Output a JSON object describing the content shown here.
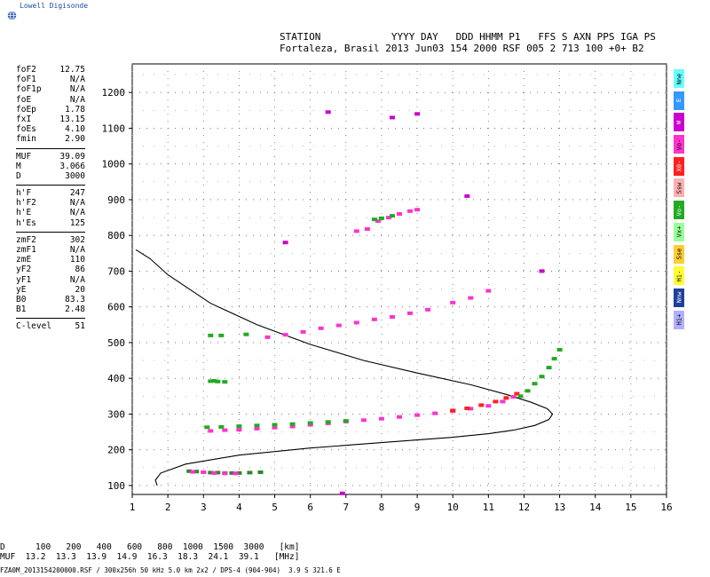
{
  "logo": {
    "text": "Lowell Digisonde",
    "icon": "globe-icon"
  },
  "header": {
    "labels": "STATION            YYYY DAY   DDD HHMM P1   FFS S AXN PPS IGA PS",
    "values": "Fortaleza, Brasil 2013 Jun03 154 2000 RSF 005 2 713 100 +0+ B2"
  },
  "params_group1": [
    {
      "name": "foF2",
      "value": "12.75"
    },
    {
      "name": "foF1",
      "value": "N/A"
    },
    {
      "name": "foF1p",
      "value": "N/A"
    },
    {
      "name": "foE",
      "value": "N/A"
    },
    {
      "name": "foEp",
      "value": "1.78"
    },
    {
      "name": "fxI",
      "value": "13.15"
    },
    {
      "name": "foEs",
      "value": "4.10"
    },
    {
      "name": "fmin",
      "value": "2.90"
    }
  ],
  "params_group2": [
    {
      "name": "MUF",
      "value": "39.09"
    },
    {
      "name": "M",
      "value": "3.066"
    },
    {
      "name": "D",
      "value": "3000"
    }
  ],
  "params_group3": [
    {
      "name": "h'F",
      "value": "247"
    },
    {
      "name": "h'F2",
      "value": "N/A"
    },
    {
      "name": "h'E",
      "value": "N/A"
    },
    {
      "name": "h'Es",
      "value": "125"
    }
  ],
  "params_group4": [
    {
      "name": "zmF2",
      "value": "302"
    },
    {
      "name": "zmF1",
      "value": "N/A"
    },
    {
      "name": "zmE",
      "value": "110"
    },
    {
      "name": "yF2",
      "value": "86"
    },
    {
      "name": "yF1",
      "value": "N/A"
    },
    {
      "name": "yE",
      "value": "20"
    },
    {
      "name": "B0",
      "value": "83.3"
    },
    {
      "name": "B1",
      "value": "2.48"
    }
  ],
  "params_group5": [
    {
      "name": "C-level",
      "value": "51"
    }
  ],
  "legend": [
    {
      "label": "Nne",
      "color": "#66ffff"
    },
    {
      "label": "E",
      "color": "#3399ff"
    },
    {
      "label": "W",
      "color": "#cc00cc"
    },
    {
      "label": "Vo-",
      "color": "#ff33cc"
    },
    {
      "label": "X0-",
      "color": "#ff2020"
    },
    {
      "label": "Ssw",
      "color": "#ffb0b0"
    },
    {
      "label": "Vo-",
      "color": "#22aa22"
    },
    {
      "label": "Vx+",
      "color": "#99ff99"
    },
    {
      "label": "Sse",
      "color": "#ffcc33"
    },
    {
      "label": "Hi-",
      "color": "#ffff33"
    },
    {
      "label": "Nnw",
      "color": "#1f3f99"
    },
    {
      "label": "Hi+",
      "color": "#b0b0ff"
    }
  ],
  "footer": {
    "line1": "D      100   200   400   600   800  1000  1500  3000   [km]",
    "line2": "MUF  13.2  13.3  13.9  14.9  16.3  18.3  24.1  39.1   [MHz]",
    "file": "FZA0M_2013154200000.RSF / 300x256h 50 kHz 5.0 km 2x2 / DPS-4 (904-904)  3.9 S 321.6 E"
  },
  "chart_data": {
    "type": "scatter",
    "xlim": [
      1,
      16
    ],
    "ylim": [
      75,
      1280
    ],
    "xticks": [
      1,
      2,
      3,
      4,
      5,
      6,
      7,
      8,
      9,
      10,
      11,
      12,
      13,
      14,
      15,
      16
    ],
    "yticks": [
      100,
      200,
      300,
      400,
      500,
      600,
      700,
      800,
      900,
      1000,
      1100,
      1200
    ],
    "grid": true,
    "profile": [
      [
        1.7,
        100
      ],
      [
        1.65,
        115
      ],
      [
        1.8,
        135
      ],
      [
        2.5,
        160
      ],
      [
        4,
        185
      ],
      [
        6,
        205
      ],
      [
        8,
        220
      ],
      [
        10,
        235
      ],
      [
        11,
        245
      ],
      [
        11.7,
        255
      ],
      [
        12.3,
        268
      ],
      [
        12.7,
        285
      ],
      [
        12.8,
        300
      ],
      [
        12.65,
        315
      ],
      [
        12.2,
        333
      ],
      [
        11.5,
        355
      ],
      [
        10.5,
        382
      ],
      [
        9,
        415
      ],
      [
        7.5,
        450
      ],
      [
        6,
        495
      ],
      [
        4.5,
        550
      ],
      [
        3.2,
        610
      ],
      [
        2,
        690
      ],
      [
        1.5,
        735
      ],
      [
        1.1,
        760
      ]
    ],
    "traces": [
      {
        "name": "E-layer",
        "color": "#2a8a2a",
        "points": [
          [
            2.6,
            140
          ],
          [
            2.8,
            139
          ],
          [
            3,
            137
          ],
          [
            3.2,
            136
          ],
          [
            3.4,
            136
          ],
          [
            3.6,
            135
          ],
          [
            3.8,
            135
          ],
          [
            4,
            135
          ],
          [
            4.3,
            136
          ],
          [
            4.6,
            137
          ]
        ]
      },
      {
        "name": "E-layer echo",
        "color": "#ff33cc",
        "points": [
          [
            2.7,
            138
          ],
          [
            3,
            137
          ],
          [
            3.3,
            135
          ],
          [
            3.6,
            134
          ],
          [
            3.9,
            134
          ]
        ]
      },
      {
        "name": "F-trace",
        "color": "#ff33cc",
        "points": [
          [
            3.2,
            253
          ],
          [
            3.6,
            255
          ],
          [
            4,
            256
          ],
          [
            4.5,
            259
          ],
          [
            5,
            262
          ],
          [
            5.5,
            265
          ],
          [
            6,
            270
          ],
          [
            6.5,
            274
          ],
          [
            7,
            279
          ],
          [
            7.5,
            283
          ],
          [
            8,
            287
          ],
          [
            8.5,
            292
          ],
          [
            9,
            297
          ],
          [
            9.5,
            302
          ],
          [
            10,
            308
          ],
          [
            10.5,
            315
          ],
          [
            11,
            323
          ],
          [
            11.4,
            335
          ],
          [
            11.7,
            348
          ]
        ]
      },
      {
        "name": "F-trace o",
        "color": "#22aa22",
        "points": [
          [
            3.1,
            263
          ],
          [
            3.5,
            264
          ],
          [
            4,
            266
          ],
          [
            4.5,
            268
          ],
          [
            5,
            270
          ],
          [
            5.5,
            272
          ],
          [
            6,
            275
          ],
          [
            6.5,
            278
          ],
          [
            7,
            281
          ]
        ]
      },
      {
        "name": "F-trace x",
        "color": "#ff2020",
        "points": [
          [
            10,
            310
          ],
          [
            10.4,
            316
          ],
          [
            10.8,
            325
          ],
          [
            11.2,
            335
          ],
          [
            11.5,
            345
          ],
          [
            11.8,
            357
          ]
        ]
      },
      {
        "name": "X-branch",
        "color": "#22aa22",
        "points": [
          [
            11.9,
            350
          ],
          [
            12.1,
            365
          ],
          [
            12.3,
            385
          ],
          [
            12.5,
            405
          ],
          [
            12.7,
            430
          ],
          [
            12.85,
            455
          ],
          [
            13,
            480
          ]
        ]
      },
      {
        "name": "2F",
        "color": "#ff33cc",
        "points": [
          [
            4.8,
            515
          ],
          [
            5.3,
            522
          ],
          [
            5.8,
            530
          ],
          [
            6.3,
            540
          ],
          [
            6.8,
            548
          ],
          [
            7.3,
            556
          ],
          [
            7.8,
            565
          ],
          [
            8.3,
            572
          ],
          [
            8.8,
            582
          ],
          [
            9.3,
            592
          ],
          [
            10,
            612
          ],
          [
            10.5,
            625
          ],
          [
            11,
            645
          ]
        ]
      },
      {
        "name": "3F",
        "color": "#ff33cc",
        "points": [
          [
            7.3,
            812
          ],
          [
            7.6,
            818
          ],
          [
            7.9,
            840
          ],
          [
            8.2,
            850
          ],
          [
            8.5,
            860
          ],
          [
            8.8,
            868
          ],
          [
            9,
            872
          ]
        ]
      },
      {
        "name": "3F o",
        "color": "#22aa22",
        "points": [
          [
            7.8,
            845
          ],
          [
            8,
            848
          ],
          [
            8.3,
            855
          ]
        ]
      },
      {
        "name": "Es",
        "color": "#22aa22",
        "points": [
          [
            3.2,
            392
          ],
          [
            3.3,
            393
          ],
          [
            3.4,
            391
          ],
          [
            3.6,
            390
          ],
          [
            3.2,
            520
          ],
          [
            3.5,
            520
          ],
          [
            4.2,
            523
          ]
        ]
      },
      {
        "name": "scatter",
        "color": "#cc00cc",
        "points": [
          [
            6.5,
            1145
          ],
          [
            8.3,
            1130
          ],
          [
            9,
            1140
          ],
          [
            10.4,
            910
          ],
          [
            12.5,
            700
          ],
          [
            5.3,
            780
          ],
          [
            6.9,
            78
          ]
        ]
      }
    ]
  }
}
